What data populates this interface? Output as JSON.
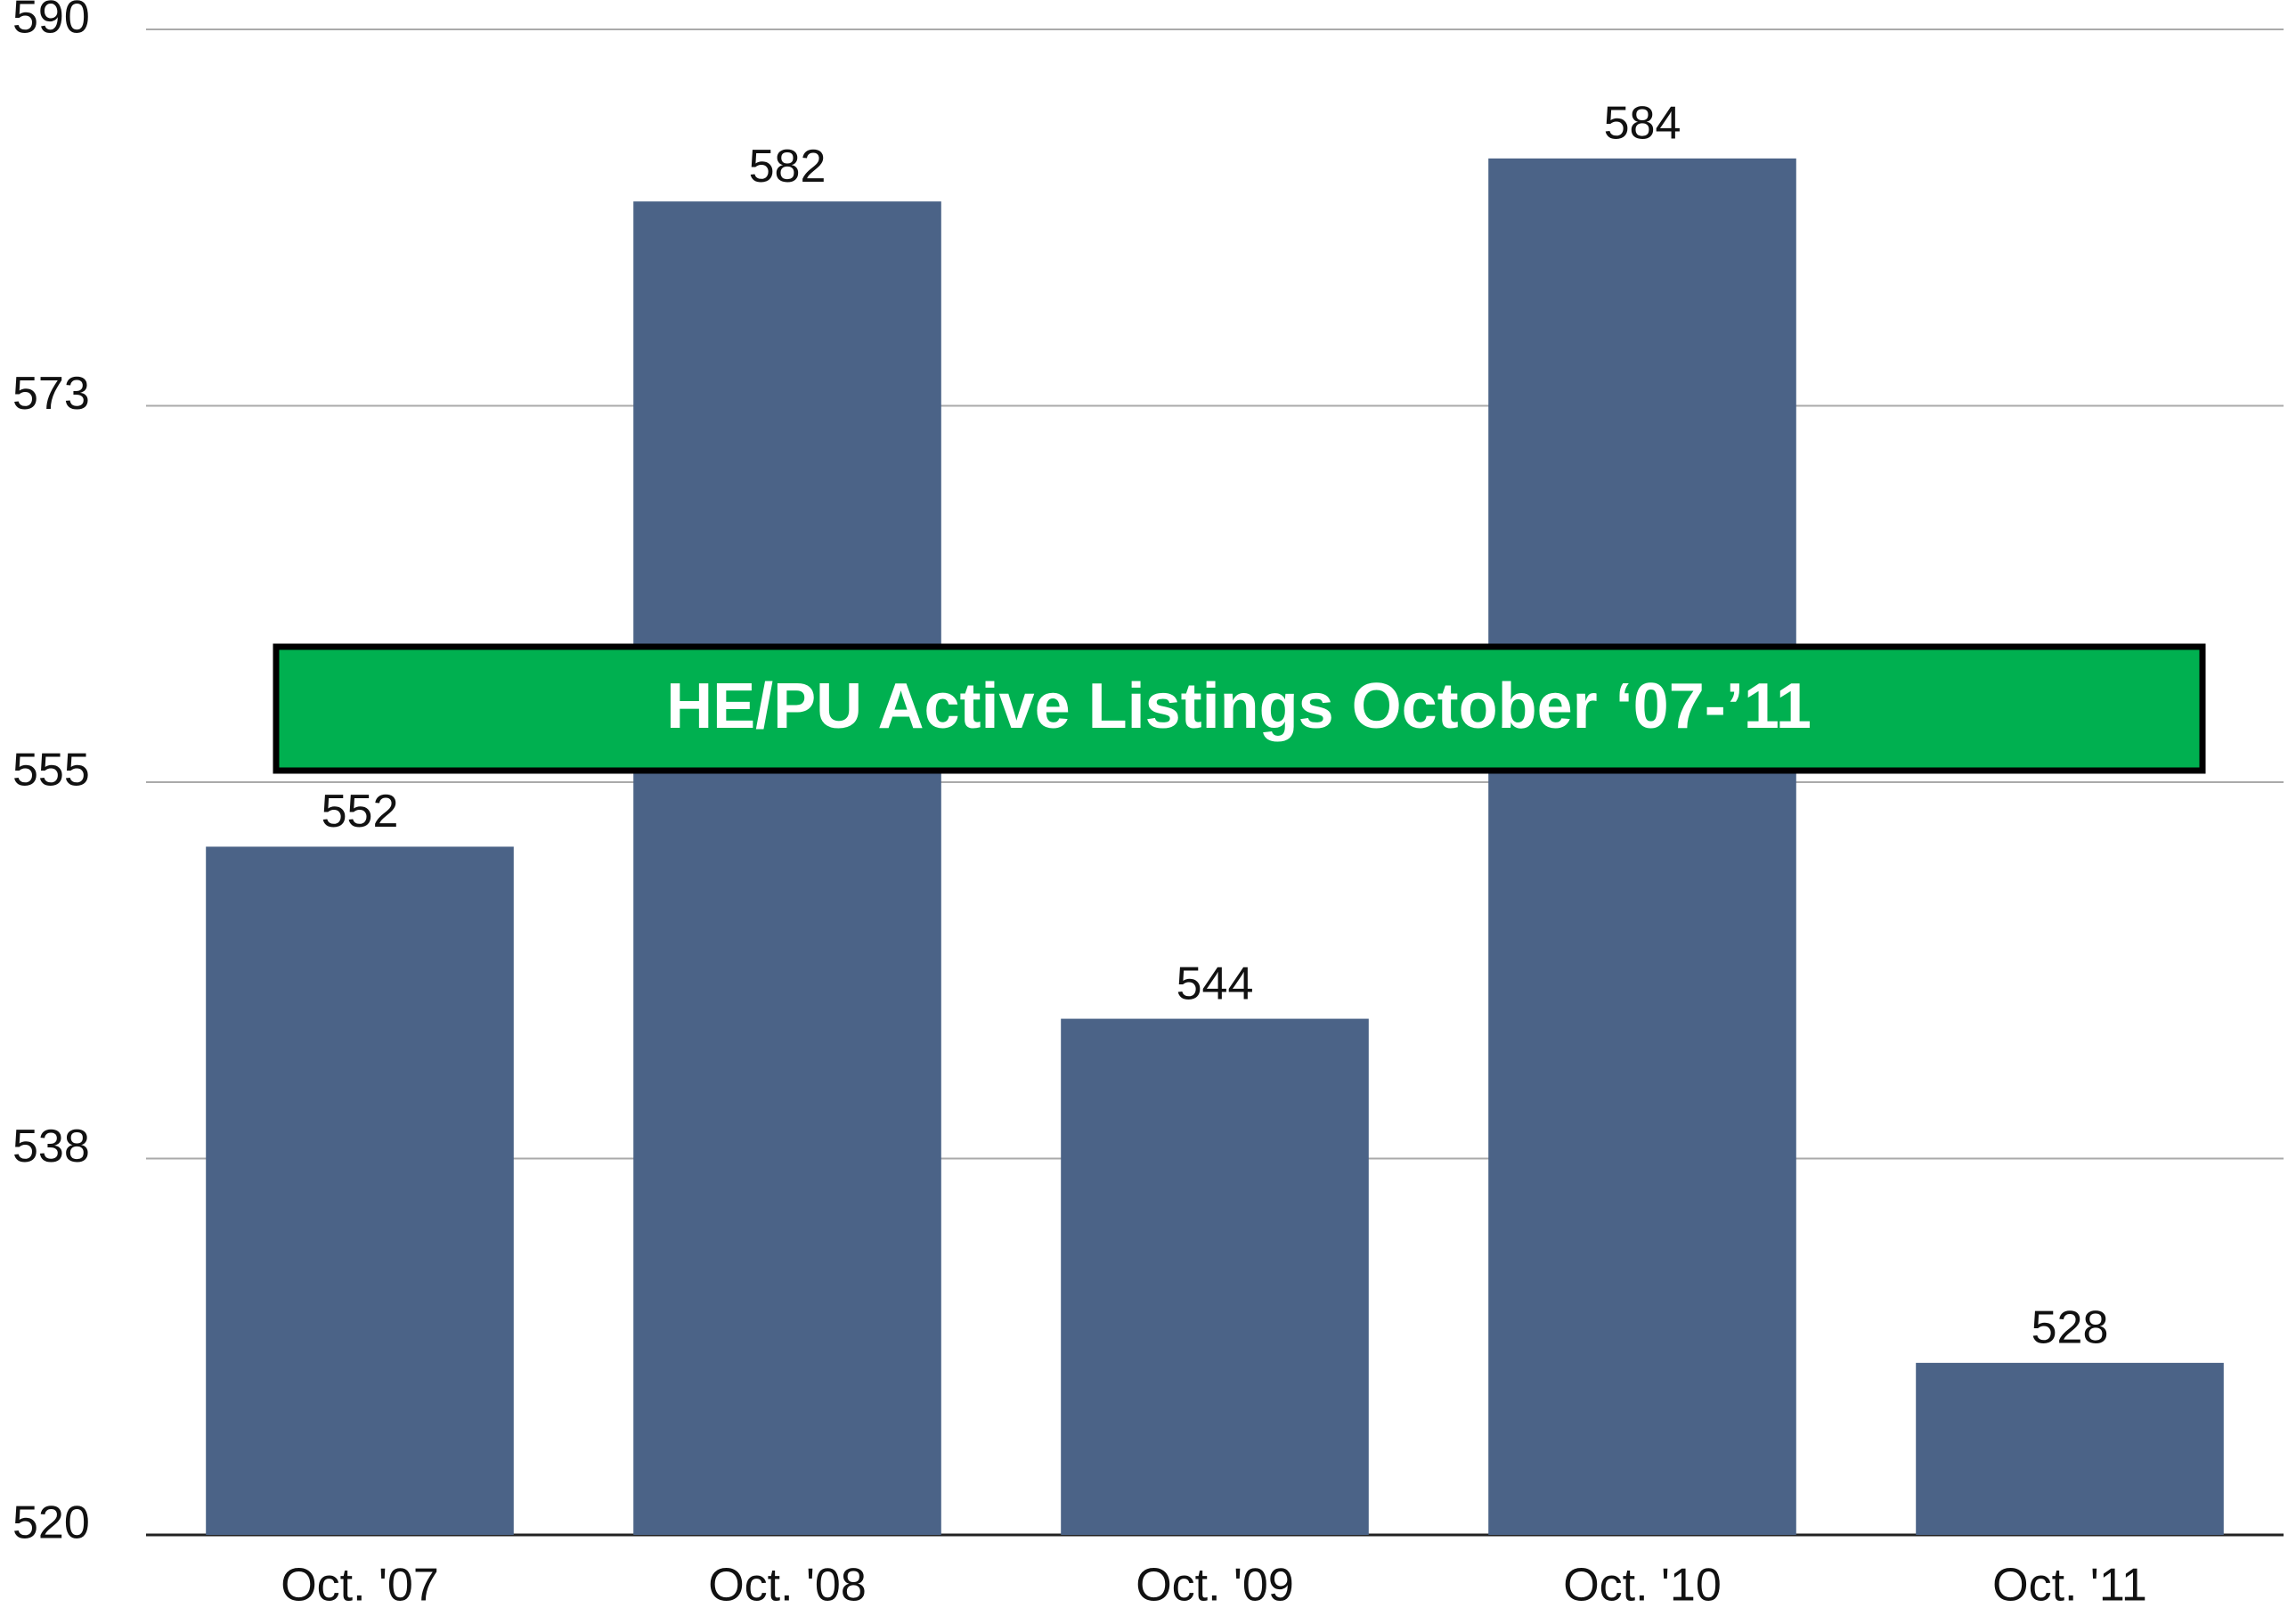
{
  "chart_data": {
    "type": "bar",
    "title": "HE/PU Active Listings October ‘07-’11",
    "categories": [
      "Oct. '07",
      "Oct. '08",
      "Oct. '09",
      "Oct. '10",
      "Oct. '11"
    ],
    "values": [
      552,
      582,
      544,
      584,
      528
    ],
    "color": "#4b6387",
    "ylim": [
      520,
      590
    ],
    "yticks": [
      520,
      {
        "value": 537.5,
        "label": "538"
      },
      555,
      {
        "value": 572.5,
        "label": "573"
      },
      590
    ],
    "grid": true
  }
}
